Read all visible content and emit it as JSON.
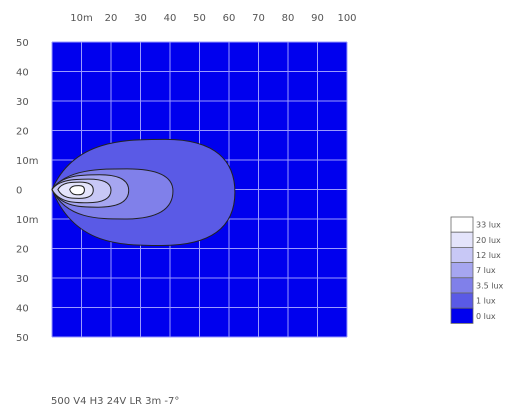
{
  "chart_data": {
    "type": "heatmap",
    "title": "",
    "caption": "500 V4 H3 24V LR 3m -7°",
    "xlabel": "",
    "ylabel": "",
    "xlim": [
      0,
      100
    ],
    "ylim": [
      -50,
      50
    ],
    "x_ticks": [
      {
        "value": 10,
        "label": "10m"
      },
      {
        "value": 20,
        "label": "20"
      },
      {
        "value": 30,
        "label": "30"
      },
      {
        "value": 40,
        "label": "40"
      },
      {
        "value": 50,
        "label": "50"
      },
      {
        "value": 60,
        "label": "60"
      },
      {
        "value": 70,
        "label": "70"
      },
      {
        "value": 80,
        "label": "80"
      },
      {
        "value": 90,
        "label": "90"
      },
      {
        "value": 100,
        "label": "100"
      }
    ],
    "y_ticks": [
      {
        "value": 50,
        "label": "50"
      },
      {
        "value": 40,
        "label": "40"
      },
      {
        "value": 30,
        "label": "30"
      },
      {
        "value": 20,
        "label": "20"
      },
      {
        "value": 10,
        "label": "10m"
      },
      {
        "value": 0,
        "label": "0"
      },
      {
        "value": -10,
        "label": "10m"
      },
      {
        "value": -20,
        "label": "20"
      },
      {
        "value": -30,
        "label": "30"
      },
      {
        "value": -40,
        "label": "40"
      },
      {
        "value": -50,
        "label": "50"
      }
    ],
    "grid": true,
    "legend_position": "right",
    "levels": [
      {
        "label": "33 lux",
        "color": "#ffffff"
      },
      {
        "label": "20 lux",
        "color": "#e4e4fb"
      },
      {
        "label": "12 lux",
        "color": "#c8c8f6"
      },
      {
        "label": "7 lux",
        "color": "#a6a6f0"
      },
      {
        "label": "3.5 lux",
        "color": "#8080ea"
      },
      {
        "label": "1 lux",
        "color": "#5a5ae6"
      },
      {
        "label": "0 lux",
        "color": "#0000ee"
      }
    ],
    "contours": [
      {
        "level": "1 lux",
        "x_extent": [
          0,
          62
        ],
        "y_extent": [
          -19,
          17
        ]
      },
      {
        "level": "3.5 lux",
        "x_extent": [
          0,
          41
        ],
        "y_extent": [
          -10,
          7
        ]
      },
      {
        "level": "7 lux",
        "x_extent": [
          0,
          26
        ],
        "y_extent": [
          -6,
          5
        ]
      },
      {
        "level": "12 lux",
        "x_extent": [
          0,
          20
        ],
        "y_extent": [
          -4.5,
          3.5
        ]
      },
      {
        "level": "20 lux",
        "x_extent": [
          2,
          14
        ],
        "y_extent": [
          -3,
          2.5
        ]
      },
      {
        "level": "33 lux",
        "x_extent": [
          6,
          11
        ],
        "y_extent": [
          -1.8,
          1.3
        ]
      }
    ]
  }
}
